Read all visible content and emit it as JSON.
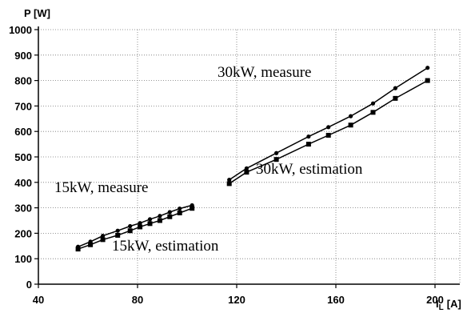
{
  "chart_data": {
    "type": "line",
    "ylabel": "P [W]",
    "xlabel_main": "I",
    "xlabel_sub": "L",
    "xlabel_unit": "[A]",
    "xlim": [
      40,
      210
    ],
    "ylim": [
      0,
      1000
    ],
    "x_ticks": [
      40,
      80,
      120,
      160,
      200
    ],
    "y_ticks": [
      0,
      100,
      200,
      300,
      400,
      500,
      600,
      700,
      800,
      900,
      1000
    ],
    "grid": "dotted",
    "series": [
      {
        "name": "15kW, measure",
        "marker": "circle",
        "x": [
          56,
          61,
          66,
          72,
          77,
          81,
          85,
          89,
          93,
          97,
          102
        ],
        "y": [
          147,
          167,
          190,
          210,
          228,
          240,
          255,
          268,
          283,
          297,
          310
        ]
      },
      {
        "name": "15kW, estimation",
        "marker": "square",
        "x": [
          56,
          61,
          66,
          72,
          77,
          81,
          85,
          89,
          93,
          97,
          102
        ],
        "y": [
          138,
          155,
          175,
          192,
          210,
          225,
          238,
          250,
          265,
          280,
          298
        ]
      },
      {
        "name": "30kW, measure",
        "marker": "circle",
        "x": [
          117,
          124,
          136,
          149,
          157,
          166,
          175,
          184,
          197
        ],
        "y": [
          410,
          455,
          515,
          580,
          617,
          660,
          710,
          770,
          850
        ]
      },
      {
        "name": "30kW, estimation",
        "marker": "square",
        "x": [
          117,
          124,
          136,
          149,
          157,
          166,
          175,
          184,
          197
        ],
        "y": [
          395,
          440,
          490,
          550,
          585,
          625,
          675,
          730,
          800
        ]
      }
    ]
  }
}
